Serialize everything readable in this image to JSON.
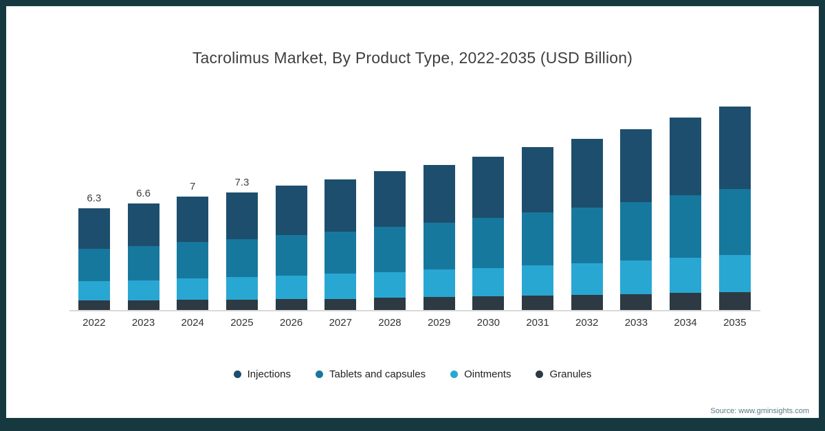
{
  "title": "Tacrolimus Market, By Product Type, 2022-2035 (USD Billion)",
  "source": "Source: www.gminsights.com",
  "frame_color": "#16393f",
  "chart_data": {
    "type": "bar",
    "stacked": true,
    "title": "Tacrolimus Market, By Product Type, 2022-2035 (USD Billion)",
    "categories": [
      "2022",
      "2023",
      "2024",
      "2025",
      "2026",
      "2027",
      "2028",
      "2029",
      "2030",
      "2031",
      "2032",
      "2033",
      "2034",
      "2035"
    ],
    "value_labels": [
      "6.3",
      "6.6",
      "7",
      "7.3",
      "",
      "",
      "",
      "",
      "",
      "",
      "",
      "",
      "",
      ""
    ],
    "series": [
      {
        "name": "Injections",
        "color": "#1d4e6d",
        "values": [
          2.5,
          2.65,
          2.8,
          2.9,
          3.05,
          3.25,
          3.45,
          3.6,
          3.8,
          4.05,
          4.25,
          4.5,
          4.8,
          5.1
        ]
      },
      {
        "name": "Tablets and capsules",
        "color": "#17789e",
        "values": [
          2.0,
          2.1,
          2.25,
          2.35,
          2.5,
          2.6,
          2.8,
          2.9,
          3.1,
          3.3,
          3.45,
          3.65,
          3.85,
          4.1
        ]
      },
      {
        "name": "Ointments",
        "color": "#29a7d3",
        "values": [
          1.2,
          1.25,
          1.3,
          1.4,
          1.45,
          1.55,
          1.6,
          1.7,
          1.75,
          1.85,
          1.95,
          2.05,
          2.2,
          2.3
        ]
      },
      {
        "name": "Granules",
        "color": "#2d3a43",
        "values": [
          0.6,
          0.6,
          0.65,
          0.65,
          0.7,
          0.7,
          0.75,
          0.8,
          0.85,
          0.9,
          0.95,
          1.0,
          1.05,
          1.1
        ]
      }
    ],
    "totals": [
      6.3,
      6.6,
      7.0,
      7.3,
      7.7,
      8.1,
      8.6,
      9.0,
      9.5,
      10.1,
      10.6,
      11.2,
      11.9,
      12.6
    ],
    "xlabel": "",
    "ylabel": "",
    "ylim": [
      0,
      13
    ],
    "grid": false,
    "legend_position": "bottom"
  }
}
